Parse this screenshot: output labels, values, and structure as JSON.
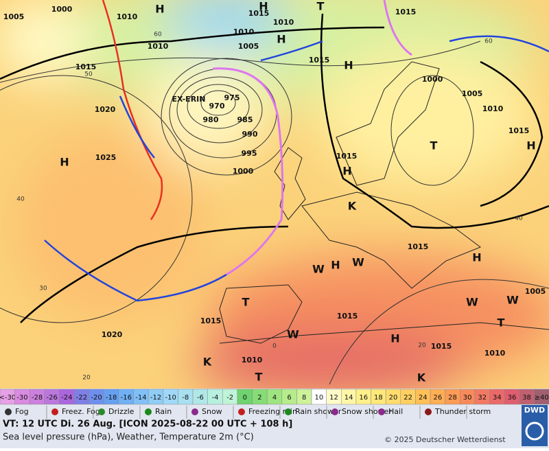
{
  "map": {
    "labels": [
      "1005",
      "1000",
      "1010",
      "H",
      "1015",
      "H",
      "1010",
      "1010",
      "1010",
      "1005",
      "H",
      "T",
      "1015",
      "1015",
      "H",
      "1015",
      "1000",
      "EX-ERIN",
      "975",
      "970",
      "1005",
      "1010",
      "1020",
      "980",
      "985",
      "990",
      "1015",
      "H",
      "T",
      "995",
      "1025",
      "H",
      "1015",
      "1000",
      "H",
      "K",
      "1015",
      "H",
      "H",
      "W",
      "W",
      "1005",
      "T",
      "W",
      "W",
      "1015",
      "T",
      "1015",
      "1020",
      "H",
      "W",
      "1015",
      "1010",
      "1010",
      "K",
      "K",
      "T"
    ],
    "gridlabels": [
      "60",
      "50",
      "40",
      "30",
      "20",
      "0",
      "20",
      "40",
      "60"
    ]
  },
  "temperature_scale": [
    {
      "label": "<-30",
      "color": "#e6a0e6"
    },
    {
      "label": "-30",
      "color": "#d98be0"
    },
    {
      "label": "-28",
      "color": "#cc80dd"
    },
    {
      "label": "-26",
      "color": "#bb77dd"
    },
    {
      "label": "-24",
      "color": "#aa66dd"
    },
    {
      "label": "-22",
      "color": "#7f7fe6"
    },
    {
      "label": "-20",
      "color": "#6f8fee"
    },
    {
      "label": "-18",
      "color": "#66a0f0"
    },
    {
      "label": "-16",
      "color": "#70b0f4"
    },
    {
      "label": "-14",
      "color": "#80c0f6"
    },
    {
      "label": "-12",
      "color": "#90ccf6"
    },
    {
      "label": "-10",
      "color": "#a0d8f8"
    },
    {
      "label": "-8",
      "color": "#a8e0f0"
    },
    {
      "label": "-6",
      "color": "#b0e8e8"
    },
    {
      "label": "-4",
      "color": "#b8f0e0"
    },
    {
      "label": "-2",
      "color": "#c0f4d8"
    },
    {
      "label": "0",
      "color": "#6fd36f"
    },
    {
      "label": "2",
      "color": "#86dc76"
    },
    {
      "label": "4",
      "color": "#9ee480"
    },
    {
      "label": "6",
      "color": "#b6ec8c"
    },
    {
      "label": "8",
      "color": "#ccf29a"
    },
    {
      "label": "10",
      "color": "#ffffff"
    },
    {
      "label": "12",
      "color": "#fffbc8"
    },
    {
      "label": "14",
      "color": "#fff7a8"
    },
    {
      "label": "16",
      "color": "#fff08a"
    },
    {
      "label": "18",
      "color": "#ffe87a"
    },
    {
      "label": "20",
      "color": "#ffdc6e"
    },
    {
      "label": "22",
      "color": "#ffcf62"
    },
    {
      "label": "24",
      "color": "#ffc058"
    },
    {
      "label": "26",
      "color": "#ffae55"
    },
    {
      "label": "28",
      "color": "#fc9b55"
    },
    {
      "label": "30",
      "color": "#f78a5a"
    },
    {
      "label": "32",
      "color": "#f27a62"
    },
    {
      "label": "34",
      "color": "#ea6a68"
    },
    {
      "label": "36",
      "color": "#df5e6e"
    },
    {
      "label": "38",
      "color": "#c06070"
    },
    {
      "label": "≥40",
      "color": "#a06070"
    }
  ],
  "weather_legend": [
    "Fog",
    "Freez. Fog",
    "Drizzle",
    "Rain",
    "Snow",
    "Freezing rain",
    "Rain shower",
    "Snow shower",
    "Hail",
    "Thunder storm"
  ],
  "footer": {
    "valid_time": "VT: 12 UTC Di.  26 Aug. [ICON 2025-08-22  00 UTC + 108 h]",
    "subtitle": "Sea level pressure (hPa), Weather, Temperature 2m (°C)",
    "copyright": "© 2025 Deutscher Wetterdienst",
    "logo": "DWD"
  }
}
